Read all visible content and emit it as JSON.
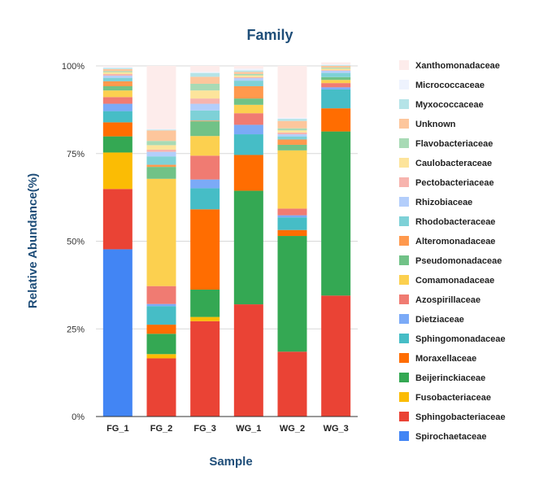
{
  "chart_data": {
    "type": "bar",
    "stacked": true,
    "title": "Family",
    "xlabel": "Sample",
    "ylabel": "Relative Abundance(%)",
    "ylim": [
      0,
      100
    ],
    "yticks": [
      0,
      25,
      50,
      75,
      100
    ],
    "ytick_labels": [
      "0%",
      "25%",
      "50%",
      "75%",
      "100%"
    ],
    "categories": [
      "FG_1",
      "FG_2",
      "FG_3",
      "WG_1",
      "WG_2",
      "WG_3"
    ],
    "legend_position": "right",
    "grid": true,
    "series": [
      {
        "name": "Spirochaetaceae",
        "color": "#4285f4",
        "values": [
          47.7,
          0,
          0,
          0,
          0,
          0
        ]
      },
      {
        "name": "Sphingobacteriaceae",
        "color": "#ea4335",
        "values": [
          17.2,
          16.6,
          27.2,
          32.0,
          18.5,
          34.5
        ]
      },
      {
        "name": "Fusobacteriaceae",
        "color": "#fbbc04",
        "values": [
          10.4,
          1.2,
          1.2,
          0,
          0,
          0
        ]
      },
      {
        "name": "Beijerinckiaceae",
        "color": "#34a853",
        "values": [
          4.6,
          5.8,
          7.8,
          32.4,
          33.0,
          46.8
        ]
      },
      {
        "name": "Moraxellaceae",
        "color": "#ff6d01",
        "values": [
          4.0,
          2.6,
          22.9,
          10.2,
          1.7,
          6.6
        ]
      },
      {
        "name": "Sphingomonadaceae",
        "color": "#46bdc6",
        "values": [
          3.2,
          5.3,
          6.0,
          5.9,
          3.6,
          5.4
        ]
      },
      {
        "name": "Dietziaceae",
        "color": "#7baaf7",
        "values": [
          2.1,
          0.6,
          2.5,
          2.7,
          0.6,
          0.6
        ]
      },
      {
        "name": "Azospirillaceae",
        "color": "#f07b72",
        "values": [
          1.9,
          5.1,
          6.8,
          3.3,
          1.9,
          1.2
        ]
      },
      {
        "name": "Comamonadaceae",
        "color": "#fcd04f",
        "values": [
          1.9,
          30.6,
          5.6,
          2.4,
          16.6,
          0.9
        ]
      },
      {
        "name": "Pseudomonadaceae",
        "color": "#71c287",
        "values": [
          1.2,
          3.4,
          4.2,
          1.8,
          1.6,
          0.8
        ]
      },
      {
        "name": "Alteromonadaceae",
        "color": "#ff994d",
        "values": [
          1.4,
          0.6,
          0.2,
          3.5,
          1.5,
          0
        ]
      },
      {
        "name": "Rhodobacteraceae",
        "color": "#7ed1d7",
        "values": [
          1.0,
          2.4,
          2.9,
          1.6,
          0.9,
          1.2
        ]
      },
      {
        "name": "Rhizobiaceae",
        "color": "#b3cefb",
        "values": [
          0.6,
          1.3,
          1.9,
          0.7,
          0.6,
          0.6
        ]
      },
      {
        "name": "Pectobacteriaceae",
        "color": "#f7b4ae",
        "values": [
          0.5,
          0.6,
          1.5,
          0.3,
          0.5,
          0.2
        ]
      },
      {
        "name": "Caulobacteraceae",
        "color": "#fde49b",
        "values": [
          0.5,
          1.3,
          2.3,
          0.5,
          0.6,
          0.4
        ]
      },
      {
        "name": "Flavobacteriaceae",
        "color": "#a8dab5",
        "values": [
          0.3,
          1.2,
          1.9,
          0.4,
          0.6,
          0.3
        ]
      },
      {
        "name": "Unknown",
        "color": "#fdc69c",
        "values": [
          0.6,
          3.0,
          2.0,
          0.6,
          2.1,
          0.5
        ]
      },
      {
        "name": "Myxococcaceae",
        "color": "#b5e4e8",
        "values": [
          0.3,
          0.2,
          1.1,
          0.4,
          0.6,
          0.2
        ]
      },
      {
        "name": "Micrococcaceae",
        "color": "#eef3fe",
        "values": [
          0.3,
          0.2,
          0.3,
          0.5,
          0.3,
          0.2
        ]
      },
      {
        "name": "Xanthomonadaceae",
        "color": "#fdeceb",
        "values": [
          0.3,
          18.0,
          1.7,
          0.8,
          14.8,
          0.6
        ]
      }
    ]
  }
}
